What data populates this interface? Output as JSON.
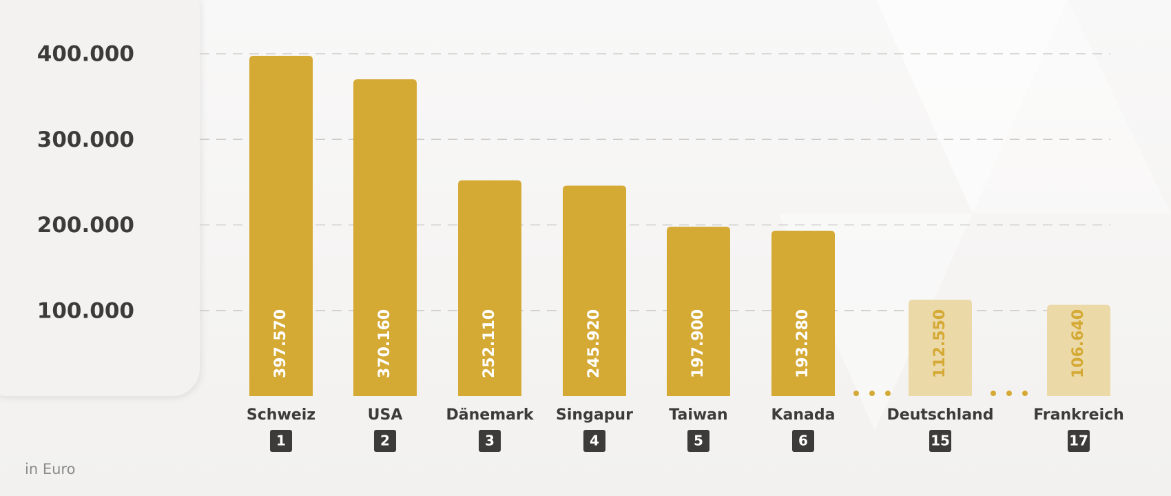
{
  "chart_data": {
    "type": "bar",
    "categories": [
      "Schweiz",
      "USA",
      "Dänemark",
      "Singapur",
      "Taiwan",
      "Kanada",
      "Deutschland",
      "Frankreich"
    ],
    "ranks": [
      "1",
      "2",
      "3",
      "4",
      "5",
      "6",
      "15",
      "17"
    ],
    "values": [
      397570,
      370160,
      252110,
      245920,
      197900,
      193280,
      112550,
      106640
    ],
    "value_labels": [
      "397.570",
      "370.160",
      "252.110",
      "245.920",
      "197.900",
      "193.280",
      "112.550",
      "106.640"
    ],
    "colors": [
      "#d4a934",
      "#d4a934",
      "#d4a934",
      "#d4a934",
      "#d4a934",
      "#d4a934",
      "#ecd9a8",
      "#ecd9a8"
    ],
    "label_colors": [
      "#ffffff",
      "#ffffff",
      "#ffffff",
      "#ffffff",
      "#ffffff",
      "#ffffff",
      "#d4a934",
      "#d4a934"
    ],
    "ylim": [
      0,
      400000
    ],
    "yticks": [
      {
        "value": 100000,
        "label": "100.000"
      },
      {
        "value": 200000,
        "label": "200.000"
      },
      {
        "value": 300000,
        "label": "300.000"
      },
      {
        "value": 400000,
        "label": "400.000"
      }
    ],
    "grid": true,
    "unit_note": "in Euro"
  }
}
